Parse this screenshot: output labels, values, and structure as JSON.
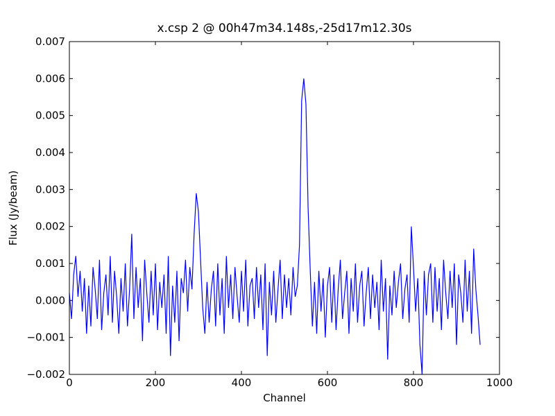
{
  "chart_data": {
    "type": "line",
    "title": "x.csp 2 @ 00h47m34.148s,-25d17m12.30s",
    "xlabel": "Channel",
    "ylabel": "Flux (Jy/beam)",
    "xlim": [
      0,
      1000
    ],
    "xticks": [
      0,
      200,
      400,
      600,
      800,
      1000
    ],
    "ylim": [
      -0.002,
      0.007
    ],
    "yticks": [
      {
        "value": -0.002,
        "label": "−0.002"
      },
      {
        "value": -0.001,
        "label": "−0.001"
      },
      {
        "value": 0,
        "label": "0.000"
      },
      0.001,
      0.002,
      0.003,
      0.004,
      0.005,
      0.006,
      0.007
    ],
    "series": [
      {
        "color": "#0000ff",
        "x": [
          0,
          5,
          10,
          15,
          20,
          25,
          30,
          35,
          40,
          45,
          50,
          55,
          60,
          65,
          70,
          75,
          80,
          85,
          90,
          95,
          100,
          105,
          110,
          115,
          120,
          125,
          130,
          135,
          140,
          145,
          150,
          155,
          160,
          165,
          170,
          175,
          180,
          185,
          190,
          195,
          200,
          205,
          210,
          215,
          220,
          225,
          230,
          235,
          240,
          245,
          250,
          255,
          260,
          265,
          270,
          275,
          280,
          285,
          290,
          295,
          300,
          305,
          310,
          315,
          320,
          325,
          330,
          335,
          340,
          345,
          350,
          355,
          360,
          365,
          370,
          375,
          380,
          385,
          390,
          395,
          400,
          405,
          410,
          415,
          420,
          425,
          430,
          435,
          440,
          445,
          450,
          455,
          460,
          465,
          470,
          475,
          480,
          485,
          490,
          495,
          500,
          505,
          510,
          515,
          520,
          525,
          530,
          535,
          540,
          545,
          550,
          555,
          560,
          565,
          570,
          575,
          580,
          585,
          590,
          595,
          600,
          605,
          610,
          615,
          620,
          625,
          630,
          635,
          640,
          645,
          650,
          655,
          660,
          665,
          670,
          675,
          680,
          685,
          690,
          695,
          700,
          705,
          710,
          715,
          720,
          725,
          730,
          735,
          740,
          745,
          750,
          755,
          760,
          765,
          770,
          775,
          780,
          785,
          790,
          795,
          800,
          805,
          810,
          815,
          820,
          825,
          830,
          835,
          840,
          845,
          850,
          855,
          860,
          865,
          870,
          875,
          880,
          885,
          890,
          895,
          900,
          905,
          910,
          915,
          920,
          925,
          930,
          935,
          940,
          945,
          950,
          955
        ],
        "values": [
          0.0002,
          -0.0005,
          0.0007,
          0.0012,
          0.0001,
          0.0008,
          -0.0003,
          0.0006,
          -0.0009,
          0.0004,
          -0.0007,
          0.0009,
          0.0003,
          -0.0005,
          0.0011,
          -0.0008,
          0.0002,
          0.0007,
          -0.0004,
          0.0012,
          -0.0006,
          0.0008,
          0.0001,
          -0.0009,
          0.0006,
          -0.0003,
          0.001,
          -0.0007,
          0.0003,
          0.0018,
          -0.0005,
          0.0009,
          -0.0002,
          0.0006,
          -0.0011,
          0.0011,
          0.0002,
          -0.0006,
          0.0008,
          -0.0004,
          0.001,
          -0.0008,
          0.0005,
          -0.0002,
          0.0007,
          -0.0009,
          0.0012,
          -0.0015,
          0.0004,
          -0.0006,
          0.0008,
          -0.0011,
          0.0006,
          0.0002,
          0.0011,
          -0.0003,
          0.0009,
          0.0003,
          0.0018,
          0.0029,
          0.0024,
          0.0011,
          -0.0002,
          -0.0009,
          0.0005,
          -0.0006,
          0.0003,
          0.0008,
          -0.0007,
          0.001,
          -0.0004,
          0.0006,
          -0.0009,
          0.0012,
          -0.0002,
          0.0007,
          -0.0005,
          0.0009,
          0.0001,
          -0.0006,
          0.0008,
          -0.0003,
          0.0011,
          -0.0007,
          0.0004,
          0.0006,
          -0.0005,
          0.0009,
          -0.0002,
          0.0007,
          -0.0008,
          0.001,
          -0.0015,
          0.0005,
          -0.0004,
          0.0008,
          -0.0006,
          0.0003,
          0.0011,
          -0.0005,
          0.0007,
          -0.0002,
          0.0006,
          -0.0004,
          0.0009,
          0.0001,
          0.0004,
          0.0015,
          0.0054,
          0.006,
          0.0053,
          0.0025,
          0.0008,
          -0.0007,
          0.0005,
          -0.0009,
          0.0008,
          -0.0003,
          0.0006,
          -0.001,
          0.0004,
          0.0009,
          -0.0006,
          0.0007,
          -0.0008,
          0.0003,
          0.0011,
          -0.0005,
          0.0002,
          0.0008,
          -0.0009,
          0.0006,
          -0.0003,
          0.001,
          -0.0006,
          0.0004,
          0.0008,
          -0.0007,
          0.0002,
          0.0009,
          -0.0005,
          0.0007,
          -0.0002,
          0.0005,
          -0.0008,
          0.0011,
          -0.0003,
          0.0006,
          -0.0016,
          0.0004,
          -0.0004,
          0.0008,
          -0.0002,
          0.0005,
          0.001,
          -0.0005,
          0.0003,
          0.0007,
          -0.0006,
          0.002,
          0.0009,
          -0.0003,
          0.0006,
          -0.0012,
          -0.002,
          0.0008,
          -0.0004,
          0.0007,
          0.001,
          -0.0006,
          0.0009,
          -0.0003,
          0.0006,
          -0.0008,
          0.0011,
          0.0002,
          -0.0005,
          0.0008,
          -0.0002,
          0.001,
          -0.0012,
          0.0007,
          0.0002,
          -0.0006,
          0.0011,
          -0.0003,
          0.0008,
          -0.0009,
          0.0014,
          0.0003,
          -0.0004,
          -0.0012
        ]
      }
    ]
  }
}
